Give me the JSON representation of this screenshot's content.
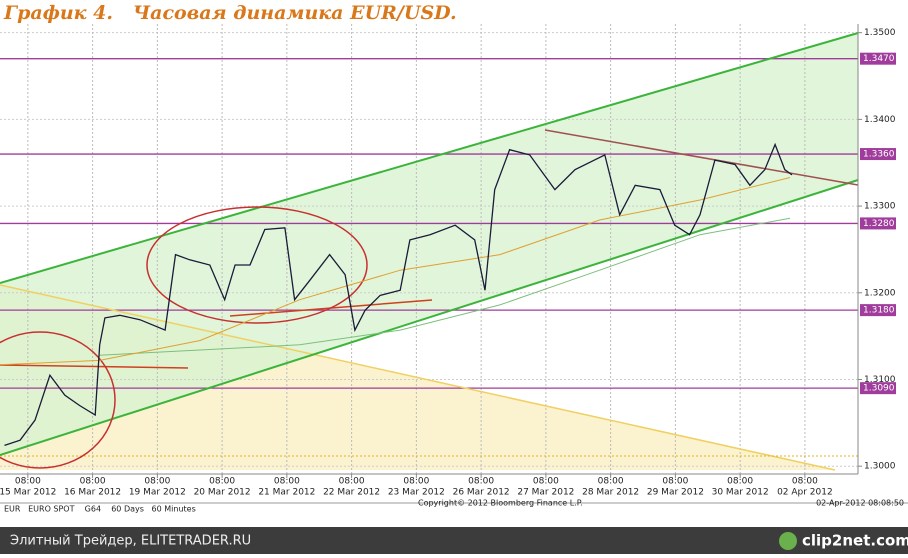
{
  "chart_data": {
    "type": "line",
    "title": "График 4.   Часовая динамика EUR/USD.",
    "xlim": [
      -0.43,
      12.82
    ],
    "ylim": [
      1.2991,
      1.351
    ],
    "time_label": "08:00",
    "xticks": [
      {
        "value": 0,
        "label": "15 Mar 2012"
      },
      {
        "value": 1,
        "label": "16 Mar 2012"
      },
      {
        "value": 2,
        "label": "19 Mar 2012"
      },
      {
        "value": 3,
        "label": "20 Mar 2012"
      },
      {
        "value": 4,
        "label": "21 Mar 2012"
      },
      {
        "value": 5,
        "label": "22 Mar 2012"
      },
      {
        "value": 6,
        "label": "23 Mar 2012"
      },
      {
        "value": 7,
        "label": "26 Mar 2012"
      },
      {
        "value": 8,
        "label": "27 Mar 2012"
      },
      {
        "value": 9,
        "label": "28 Mar 2012"
      },
      {
        "value": 10,
        "label": "29 Mar 2012"
      },
      {
        "value": 11,
        "label": "30 Mar 2012"
      },
      {
        "value": 12,
        "label": "02 Apr 2012"
      }
    ],
    "yticks": [
      {
        "value": 1.35,
        "label": "1.3500"
      },
      {
        "value": 1.34,
        "label": "1.3400"
      },
      {
        "value": 1.33,
        "label": "1.3300"
      },
      {
        "value": 1.32,
        "label": "1.3200"
      },
      {
        "value": 1.31,
        "label": "1.3100"
      },
      {
        "value": 1.3,
        "label": "1.3000"
      }
    ],
    "levels": [
      1.347,
      1.336,
      1.328,
      1.318,
      1.309
    ],
    "level_labels": [
      "1.3470",
      "1.3360",
      "1.3280",
      "1.3180",
      "1.3090"
    ],
    "level_color": "#a03c9c",
    "grid": true,
    "series": [
      {
        "color": "#1a1a3a",
        "x": [
          -0.36,
          -0.12,
          0.11,
          0.34,
          0.57,
          0.8,
          1.04,
          1.11,
          1.19,
          1.42,
          1.73,
          2.12,
          2.28,
          2.5,
          2.81,
          3.04,
          3.2,
          3.43,
          3.66,
          3.97,
          4.12,
          4.36,
          4.66,
          4.9,
          5.05,
          5.21,
          5.44,
          5.75,
          5.9,
          6.21,
          6.6,
          6.9,
          7.06,
          7.21,
          7.44,
          7.75,
          8.14,
          8.45,
          8.91,
          9.14,
          9.38,
          9.76,
          9.99,
          10.22,
          10.38,
          10.61,
          10.92,
          11.15,
          11.38,
          11.54,
          11.69,
          11.8
        ],
        "values": [
          1.3024,
          1.303,
          1.3053,
          1.3105,
          1.3082,
          1.307,
          1.3059,
          1.314,
          1.3171,
          1.3174,
          1.3169,
          1.3157,
          1.3244,
          1.3238,
          1.3232,
          1.3192,
          1.3232,
          1.3232,
          1.3273,
          1.3275,
          1.3192,
          1.3215,
          1.3244,
          1.3221,
          1.3157,
          1.318,
          1.3197,
          1.3203,
          1.3261,
          1.3267,
          1.3278,
          1.3261,
          1.3203,
          1.3319,
          1.3365,
          1.3359,
          1.3319,
          1.3342,
          1.3359,
          1.329,
          1.3324,
          1.3319,
          1.3278,
          1.3267,
          1.329,
          1.3353,
          1.3348,
          1.3324,
          1.3342,
          1.3371,
          1.3342,
          1.3336
        ]
      },
      {
        "color": "#e0a030",
        "x": [
          -0.43,
          1.11,
          2.66,
          4.2,
          5.75,
          7.29,
          8.83,
          10.38,
          11.77
        ],
        "values": [
          1.3117,
          1.3122,
          1.3145,
          1.3192,
          1.3226,
          1.3244,
          1.3284,
          1.3307,
          1.3333
        ]
      },
      {
        "color": "#7cc07c",
        "x": [
          1.11,
          2.66,
          4.2,
          5.75,
          7.29,
          8.83,
          10.38,
          11.77
        ],
        "values": [
          1.3128,
          1.3134,
          1.314,
          1.3157,
          1.3186,
          1.3226,
          1.3267,
          1.3286
        ]
      }
    ]
  },
  "footer": {
    "ticker": "EUR   EURO SPOT    G64    60 Days   60 Minutes",
    "copyright": "Copyright© 2012 Bloomberg Finance L.P.",
    "timestamp": "02-Apr-2012 08:08:50"
  },
  "watermark": {
    "left": "Элитный Трейдер, ELITETRADER.RU",
    "right": "clip2net.com"
  }
}
